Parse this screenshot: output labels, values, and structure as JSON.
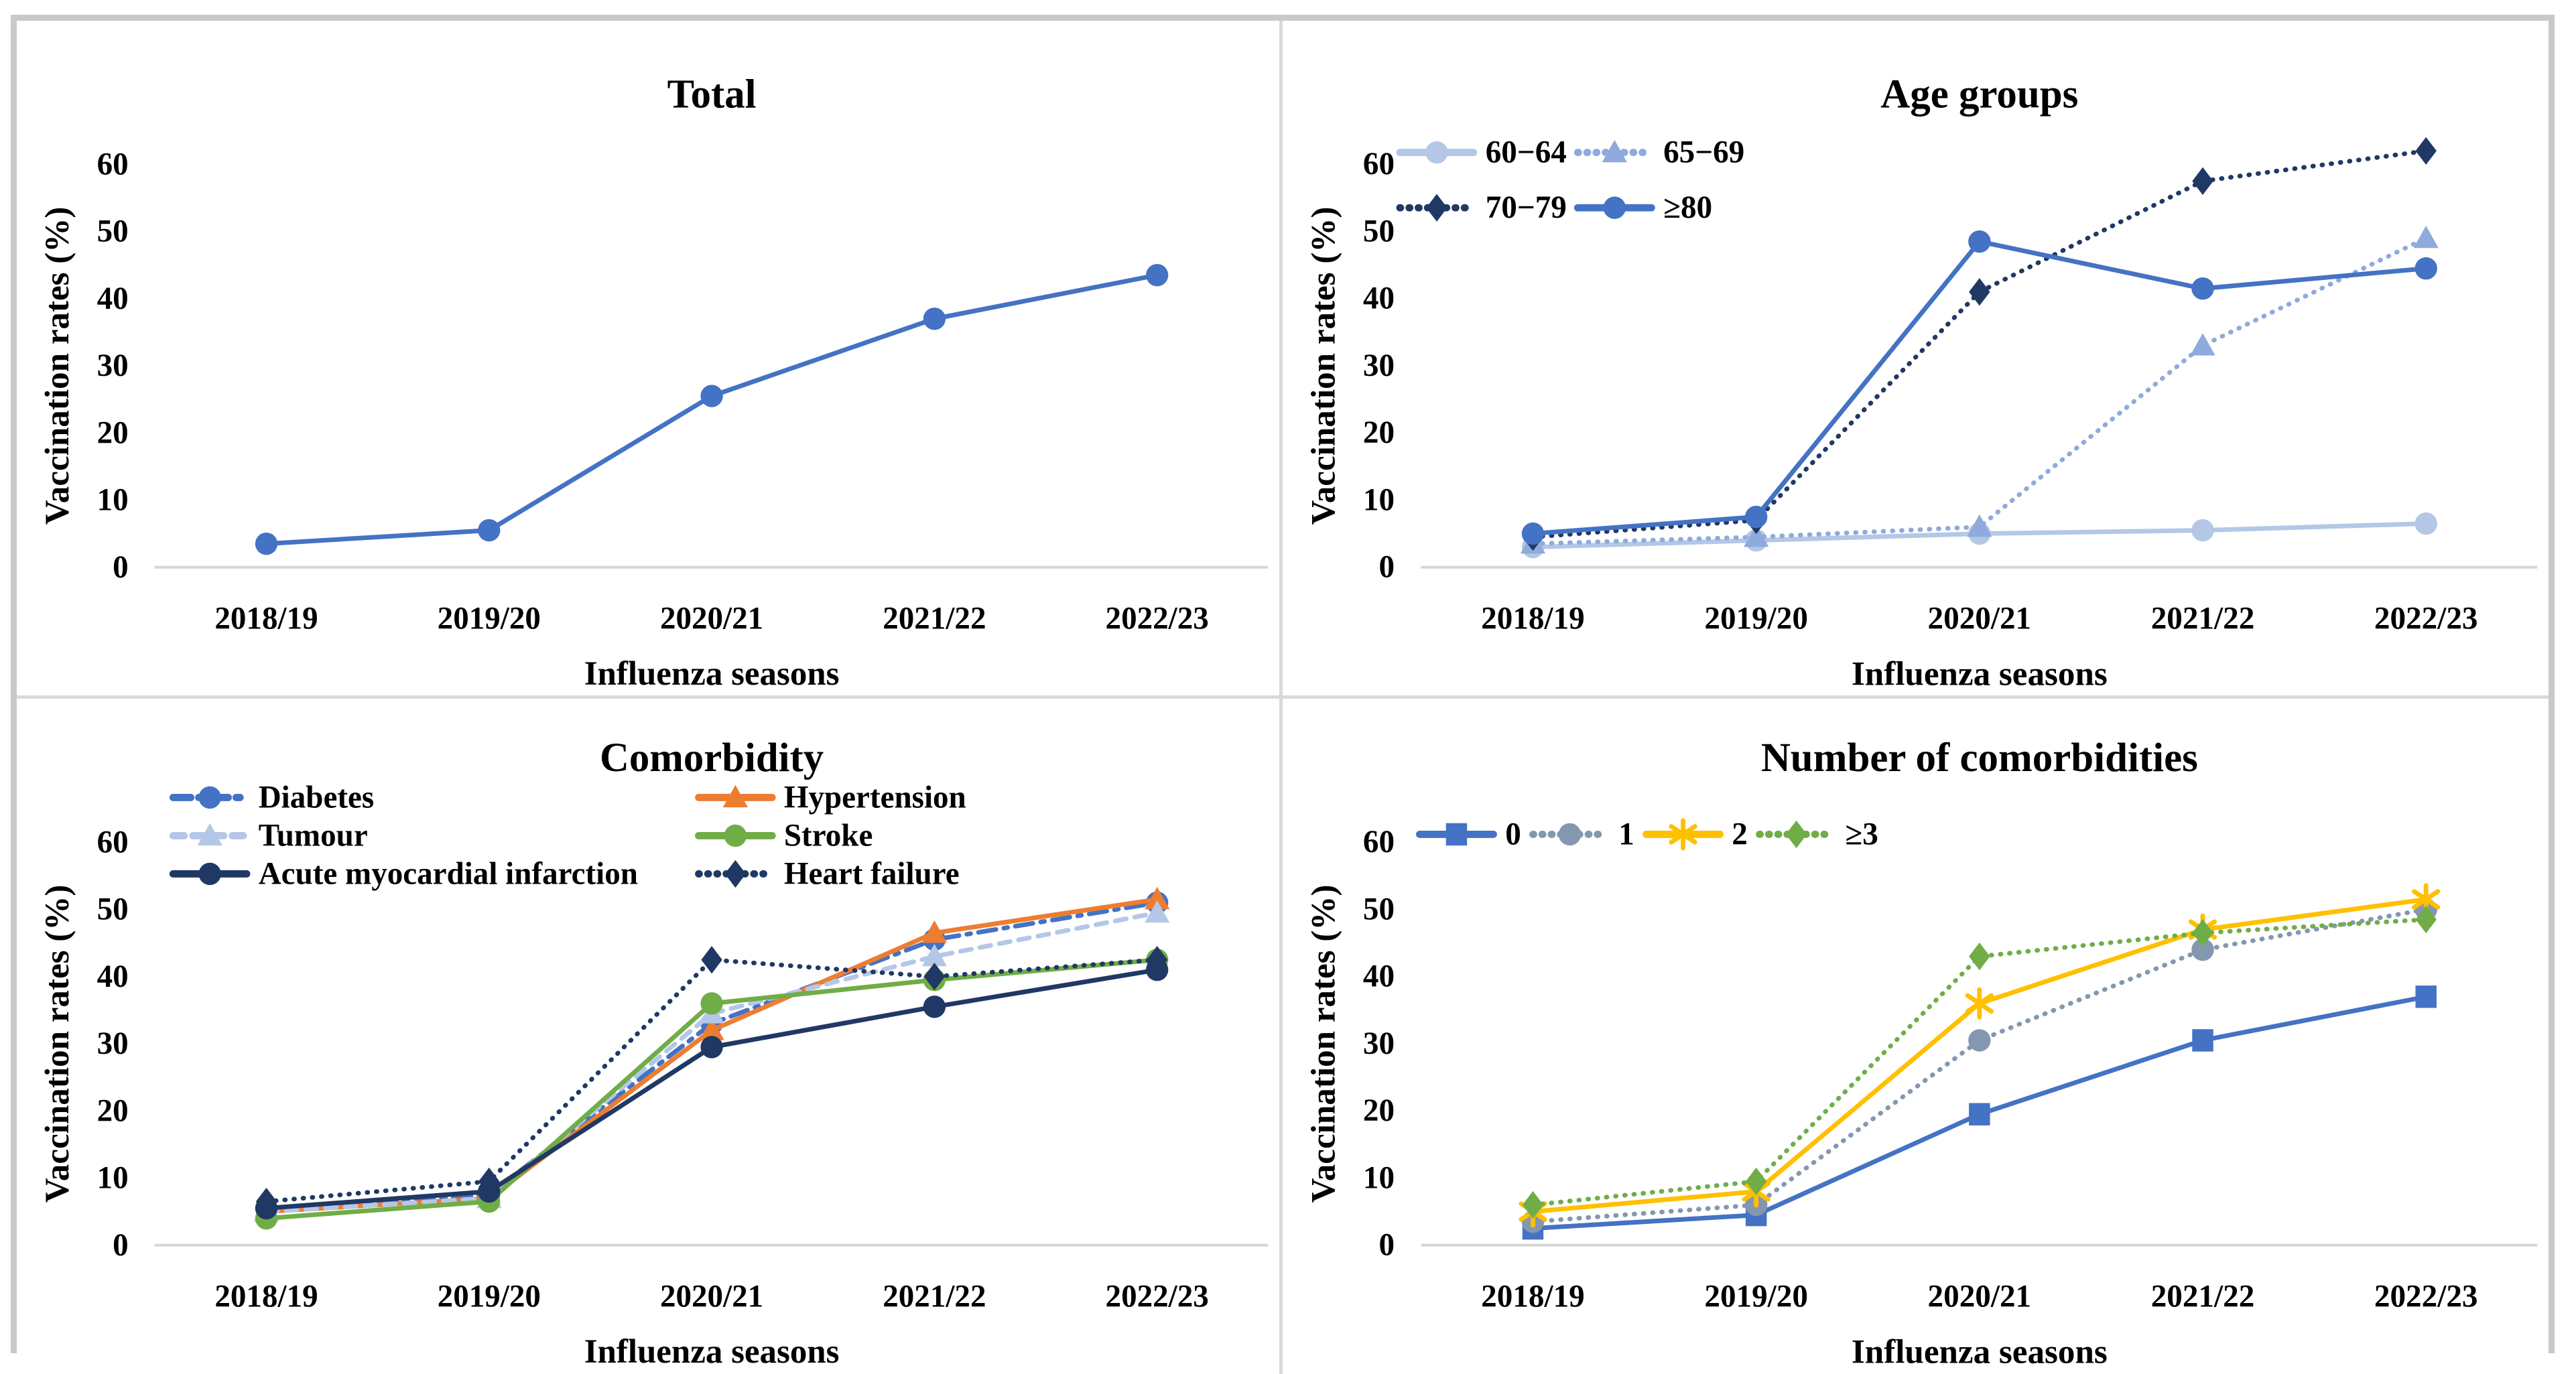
{
  "figure": {
    "x_axis_label": "Influenza seasons",
    "y_axis_label": "Vaccination rates (%)",
    "categories": [
      "2018/19",
      "2019/20",
      "2020/21",
      "2021/22",
      "2022/23"
    ],
    "y_ticks": [
      "0",
      "10",
      "20",
      "30",
      "40",
      "50",
      "60"
    ],
    "ylim": [
      0,
      64
    ],
    "grid": "off",
    "baseline_color": "#d6d6d6",
    "frame_border_color": "#c9c9c9",
    "panel_divider_color": "#d9d9d9"
  },
  "chart_data": [
    {
      "type": "line",
      "title": "Total",
      "xlabel": "Influenza seasons",
      "ylabel": "Vaccination rates (%)",
      "legend_position": "none",
      "categories": [
        "2018/19",
        "2019/20",
        "2020/21",
        "2021/22",
        "2022/23"
      ],
      "series": [
        {
          "name": "Total",
          "color": "#4472C4",
          "line_style": "solid",
          "marker": "circle",
          "values": [
            3.5,
            5.5,
            25.5,
            37,
            43.5
          ]
        }
      ]
    },
    {
      "type": "line",
      "title": "Age groups",
      "xlabel": "Influenza seasons",
      "ylabel": "Vaccination rates (%)",
      "legend_position": "top-left-two-columns",
      "categories": [
        "2018/19",
        "2019/20",
        "2020/21",
        "2021/22",
        "2022/23"
      ],
      "series": [
        {
          "name": "60−64",
          "color": "#B4C7E7",
          "line_style": "solid",
          "marker": "circle",
          "values": [
            3,
            4,
            5,
            5.5,
            6.5
          ]
        },
        {
          "name": "65−69",
          "color": "#8FAADC",
          "line_style": "dotted",
          "marker": "triangle",
          "values": [
            3.5,
            4.5,
            6,
            33,
            49
          ]
        },
        {
          "name": "70−79",
          "color": "#203864",
          "line_style": "dotted",
          "marker": "diamond",
          "values": [
            4.5,
            7,
            41,
            57.5,
            62
          ]
        },
        {
          "name": "≥80",
          "color": "#4472C4",
          "line_style": "solid",
          "marker": "circle",
          "values": [
            5,
            7.5,
            48.5,
            41.5,
            44.5
          ]
        }
      ]
    },
    {
      "type": "line",
      "title": "Comorbidity",
      "xlabel": "Influenza seasons",
      "ylabel": "Vaccination rates (%)",
      "legend_position": "top-left-two-columns",
      "categories": [
        "2018/19",
        "2019/20",
        "2020/21",
        "2021/22",
        "2022/23"
      ],
      "series": [
        {
          "name": "Diabetes",
          "color": "#4472C4",
          "line_style": "dashdot",
          "marker": "circle",
          "values": [
            5.5,
            7.5,
            33,
            45.5,
            51
          ]
        },
        {
          "name": "Hypertension",
          "color": "#ED7D31",
          "line_style": "solid",
          "marker": "triangle",
          "values": [
            5,
            7,
            32,
            46.5,
            51.5
          ]
        },
        {
          "name": "Tumour",
          "color": "#B4C7E7",
          "line_style": "dashed",
          "marker": "triangle",
          "values": [
            5,
            7,
            34.5,
            43,
            49.5
          ]
        },
        {
          "name": "Stroke",
          "color": "#70AD47",
          "line_style": "solid",
          "marker": "circle",
          "values": [
            4,
            6.5,
            36,
            39.5,
            42.5
          ]
        },
        {
          "name": "Acute myocardial infarction",
          "color": "#203864",
          "line_style": "solid",
          "marker": "circle",
          "values": [
            5.5,
            8,
            29.5,
            35.5,
            41
          ]
        },
        {
          "name": "Heart failure",
          "color": "#203864",
          "line_style": "dotted",
          "marker": "diamond",
          "values": [
            6.5,
            9.5,
            42.5,
            40,
            42.5
          ]
        }
      ]
    },
    {
      "type": "line",
      "title": "Number of comorbidities",
      "xlabel": "Influenza seasons",
      "ylabel": "Vaccination rates (%)",
      "legend_position": "top-left-one-row",
      "categories": [
        "2018/19",
        "2019/20",
        "2020/21",
        "2021/22",
        "2022/23"
      ],
      "series": [
        {
          "name": "0",
          "color": "#4472C4",
          "line_style": "solid",
          "marker": "square",
          "values": [
            2.5,
            4.5,
            19.5,
            30.5,
            37
          ]
        },
        {
          "name": "1",
          "color": "#8497B0",
          "line_style": "dotted",
          "marker": "circle",
          "values": [
            3.5,
            6,
            30.5,
            44,
            50
          ]
        },
        {
          "name": "2",
          "color": "#FFC000",
          "line_style": "solid",
          "marker": "star",
          "values": [
            5,
            8,
            36,
            47,
            51.5
          ]
        },
        {
          "name": "≥3",
          "color": "#70AD47",
          "line_style": "dotted",
          "marker": "diamond",
          "values": [
            6,
            9.5,
            43,
            46.5,
            48.5
          ]
        }
      ]
    }
  ]
}
